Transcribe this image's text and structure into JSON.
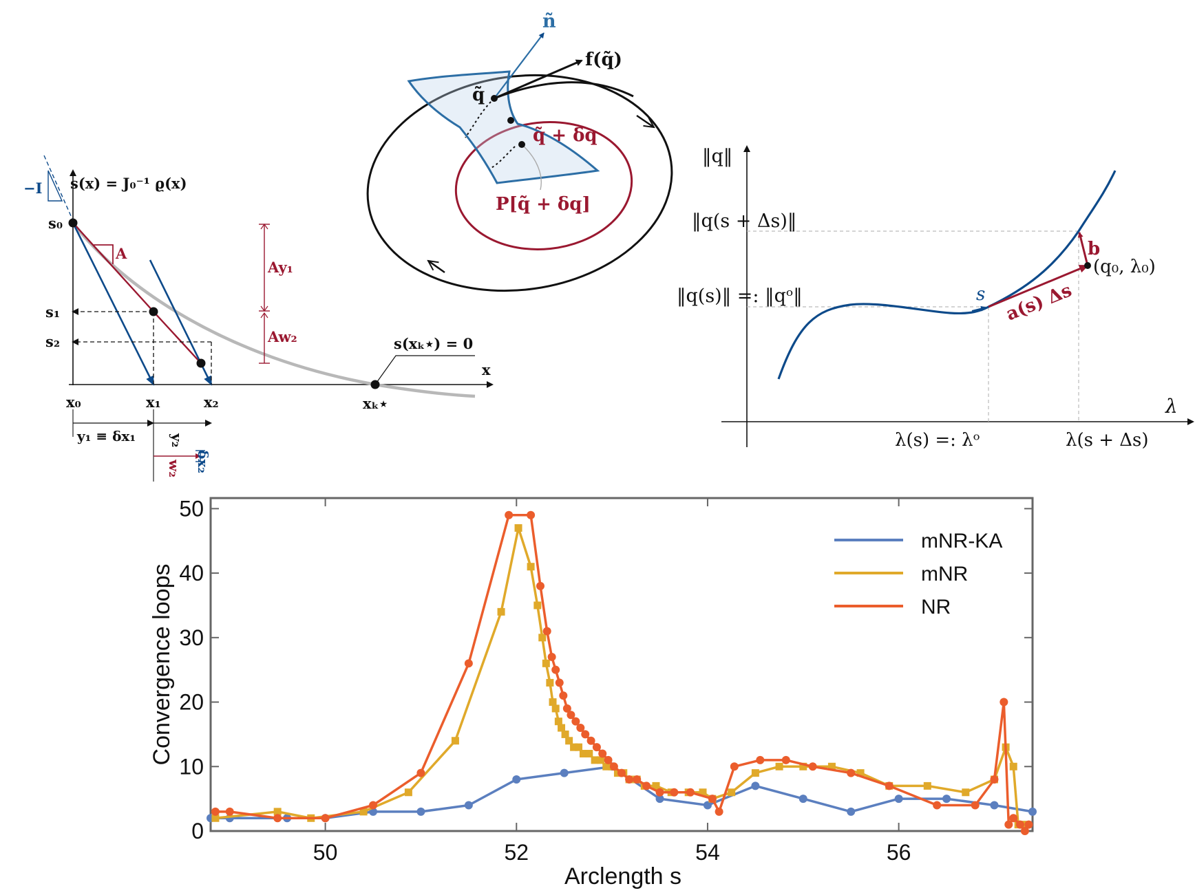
{
  "colors": {
    "blue": "#0d4a8a",
    "red": "#9a1830",
    "gray_curve": "#b8b8b8",
    "mnrka": "#5b7fbf",
    "mnr": "#e0a92a",
    "nr": "#eb5d2c"
  },
  "newton_panel": {
    "eq": "s(x) = J₀⁻¹ ϱ(x)",
    "neg_I": "−I",
    "A": "A",
    "s0": "s₀",
    "s1": "s₁",
    "s2": "s₂",
    "x0": "x₀",
    "x1": "x₁",
    "x2": "x₂",
    "xk": "xₖ⋆",
    "x_axis": "x",
    "zero": "s(xₖ⋆) = 0",
    "Ay1": "Ay₁",
    "Aw2": "Aw₂",
    "y1": "y₁ ≡ δx₁",
    "y2": "y₂",
    "w2": "w₂",
    "dx2": "δx₂"
  },
  "manifold_panel": {
    "n": "ñ",
    "fq": "f(q̃)",
    "q": "q̃",
    "qdq": "q̃ + δq",
    "Pq": "P[q̃ + δq]"
  },
  "continuation_panel": {
    "y_axis": "‖q‖",
    "x_axis": "λ",
    "qds": "‖q(s + Δs)‖",
    "qs": "‖q(s)‖ =: ‖qᵒ‖",
    "s": "s",
    "a": "a(s) Δs",
    "b": "b",
    "q0": "(q₀, λ₀)",
    "ls": "λ(s) =: λᵒ",
    "lds": "λ(s + Δs)"
  },
  "chart_data": {
    "type": "line",
    "xlabel": "Arclength s",
    "ylabel": "Convergence loops",
    "xlim": [
      48.8,
      57.4
    ],
    "ylim": [
      0,
      51
    ],
    "xticks": [
      50,
      52,
      54,
      56
    ],
    "yticks": [
      0,
      10,
      20,
      30,
      40,
      50
    ],
    "legend_position": "top-right",
    "series": [
      {
        "name": "mNR-KA",
        "color": "#5b7fbf",
        "marker": "circle",
        "x": [
          48.8,
          49.0,
          49.6,
          50.0,
          50.5,
          51.0,
          51.5,
          52.0,
          52.5,
          53.0,
          53.5,
          54.0,
          54.5,
          55.0,
          55.5,
          56.0,
          56.5,
          57.0,
          57.4
        ],
        "y": [
          2,
          2,
          2,
          2,
          3,
          3,
          4,
          8,
          9,
          10,
          5,
          4,
          7,
          5,
          3,
          5,
          5,
          4,
          3
        ]
      },
      {
        "name": "mNR",
        "color": "#e0a92a",
        "marker": "square",
        "x": [
          48.85,
          49.5,
          49.85,
          50.4,
          50.87,
          51.36,
          51.84,
          52.02,
          52.15,
          52.22,
          52.27,
          52.31,
          52.35,
          52.38,
          52.41,
          52.44,
          52.47,
          52.51,
          52.55,
          52.6,
          52.65,
          52.7,
          52.76,
          52.82,
          52.88,
          52.94,
          53.0,
          53.06,
          53.12,
          53.18,
          53.26,
          53.34,
          53.46,
          53.62,
          53.8,
          53.95,
          54.05,
          54.25,
          54.5,
          54.75,
          55.0,
          55.3,
          55.6,
          55.9,
          56.3,
          56.7,
          57.0,
          57.12,
          57.2,
          57.25,
          57.3
        ],
        "y": [
          2,
          3,
          2,
          3,
          6,
          14,
          34,
          47,
          41,
          35,
          30,
          26,
          23,
          20,
          19,
          17,
          16,
          15,
          14,
          13,
          13,
          12,
          12,
          11,
          11,
          10,
          10,
          9,
          9,
          8,
          8,
          7,
          7,
          6,
          6,
          6,
          5,
          6,
          9,
          10,
          10,
          10,
          9,
          7,
          7,
          6,
          8,
          13,
          10,
          1,
          1
        ]
      },
      {
        "name": "NR",
        "color": "#eb5d2c",
        "marker": "circle",
        "x": [
          48.85,
          49.0,
          49.5,
          50.0,
          50.5,
          51.0,
          51.5,
          51.92,
          52.15,
          52.25,
          52.32,
          52.37,
          52.41,
          52.45,
          52.49,
          52.53,
          52.57,
          52.62,
          52.67,
          52.72,
          52.78,
          52.84,
          52.9,
          52.96,
          53.02,
          53.1,
          53.18,
          53.26,
          53.36,
          53.5,
          53.65,
          53.82,
          54.05,
          54.12,
          54.28,
          54.55,
          54.82,
          55.1,
          55.5,
          55.9,
          56.4,
          56.8,
          57.0,
          57.1,
          57.15,
          57.2,
          57.27,
          57.32,
          57.36
        ],
        "y": [
          3,
          3,
          2,
          2,
          4,
          9,
          26,
          49,
          49,
          38,
          31,
          27,
          25,
          23,
          21,
          19,
          18,
          17,
          16,
          15,
          14,
          13,
          12,
          11,
          10,
          9,
          8,
          8,
          7,
          6,
          6,
          6,
          5,
          3,
          10,
          11,
          11,
          10,
          9,
          7,
          4,
          4,
          8,
          20,
          1,
          2,
          1,
          0,
          1
        ]
      }
    ]
  }
}
